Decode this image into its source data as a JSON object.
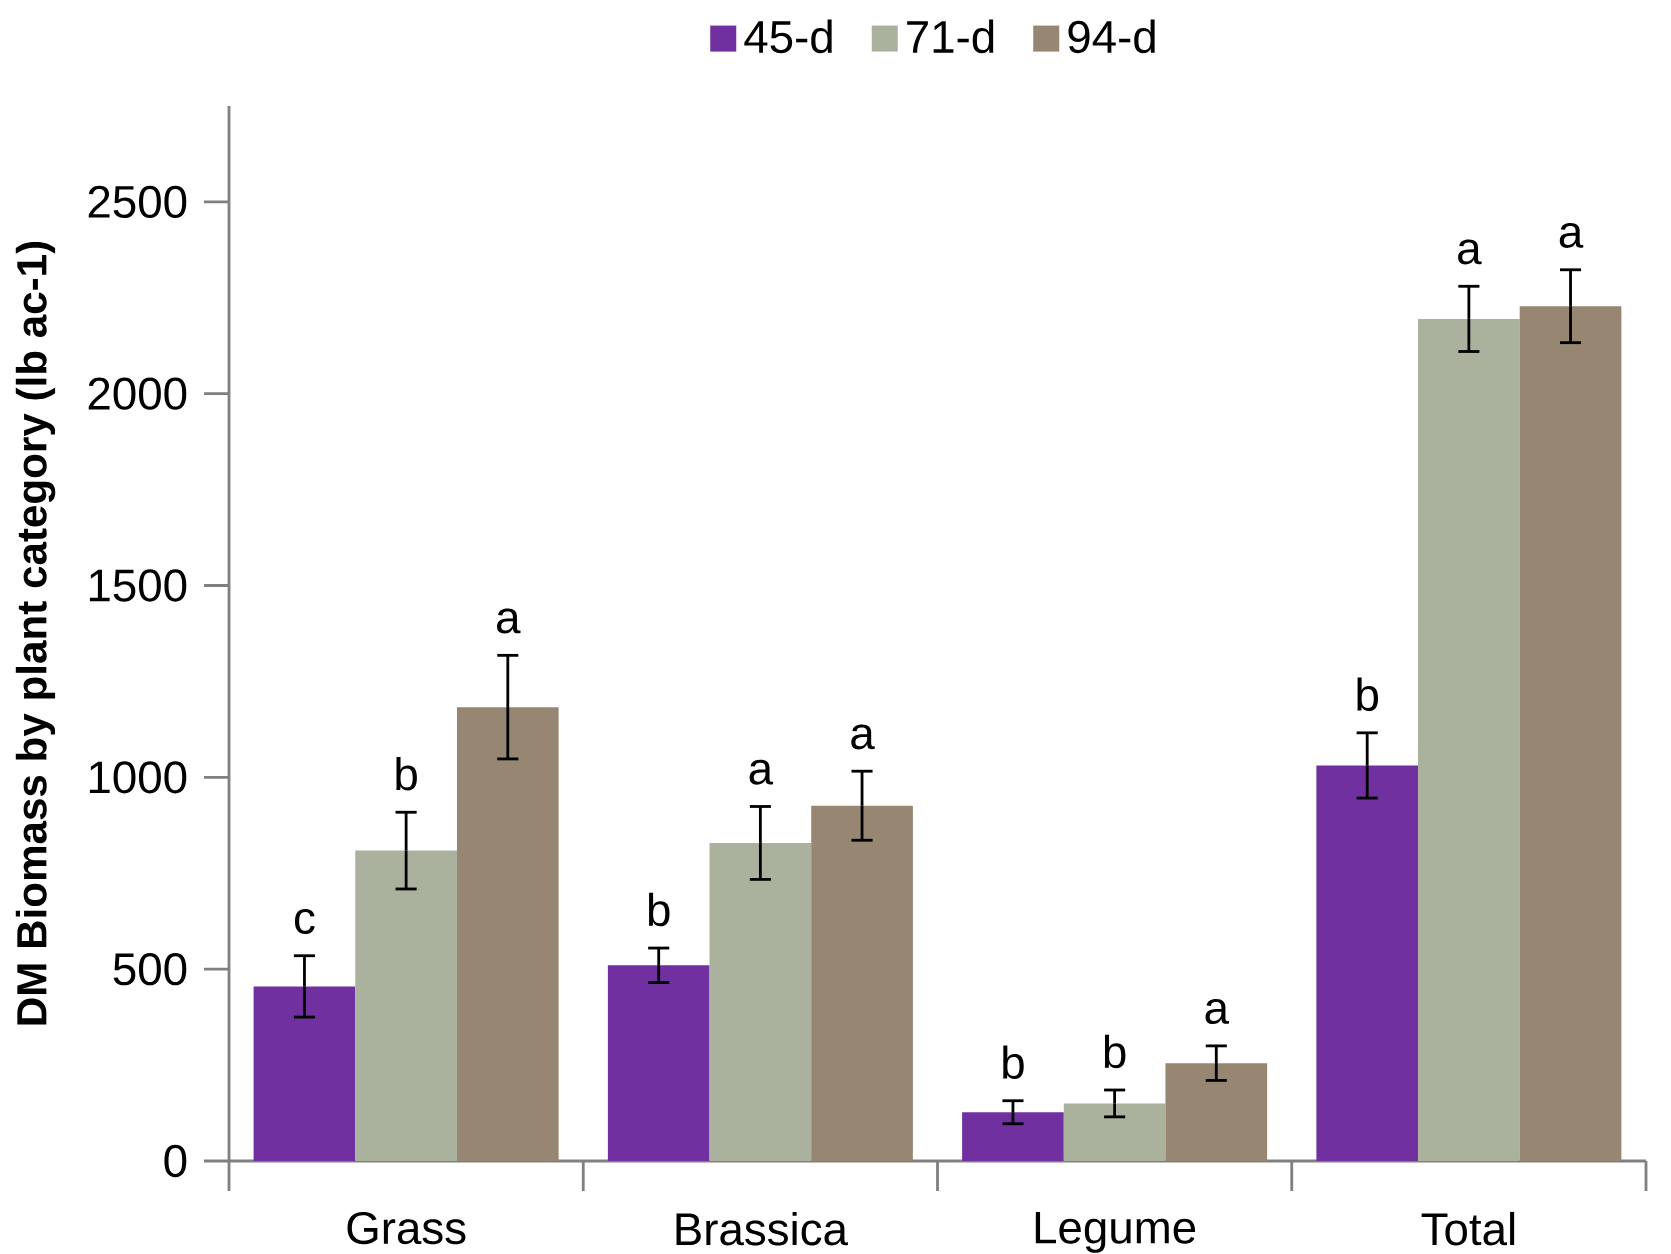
{
  "chart_data": {
    "type": "bar",
    "ylabel": "DM Biomass by plant category (lb ac-1)",
    "categories": [
      "Grass",
      "Brassica",
      "Legume",
      "Total"
    ],
    "series": [
      {
        "name": "45-d",
        "color": "#7030a0",
        "values": [
          455,
          510,
          127,
          1031
        ],
        "errors": [
          80,
          45,
          30,
          85
        ],
        "value_labels": [
          "c",
          "b",
          "b",
          "b"
        ]
      },
      {
        "name": "71-d",
        "color": "#aab29e",
        "values": [
          809,
          829,
          150,
          2195
        ],
        "errors": [
          100,
          95,
          35,
          85
        ],
        "value_labels": [
          "b",
          "a",
          "b",
          "a"
        ]
      },
      {
        "name": "94-d",
        "color": "#968672",
        "values": [
          1183,
          926,
          255,
          2228
        ],
        "errors": [
          135,
          90,
          45,
          95
        ],
        "value_labels": [
          "a",
          "a",
          "a",
          "a"
        ]
      }
    ],
    "ylim": [
      0,
      2750
    ],
    "yticks": [
      0,
      500,
      1000,
      1500,
      2000,
      2500
    ],
    "legend": "top"
  }
}
